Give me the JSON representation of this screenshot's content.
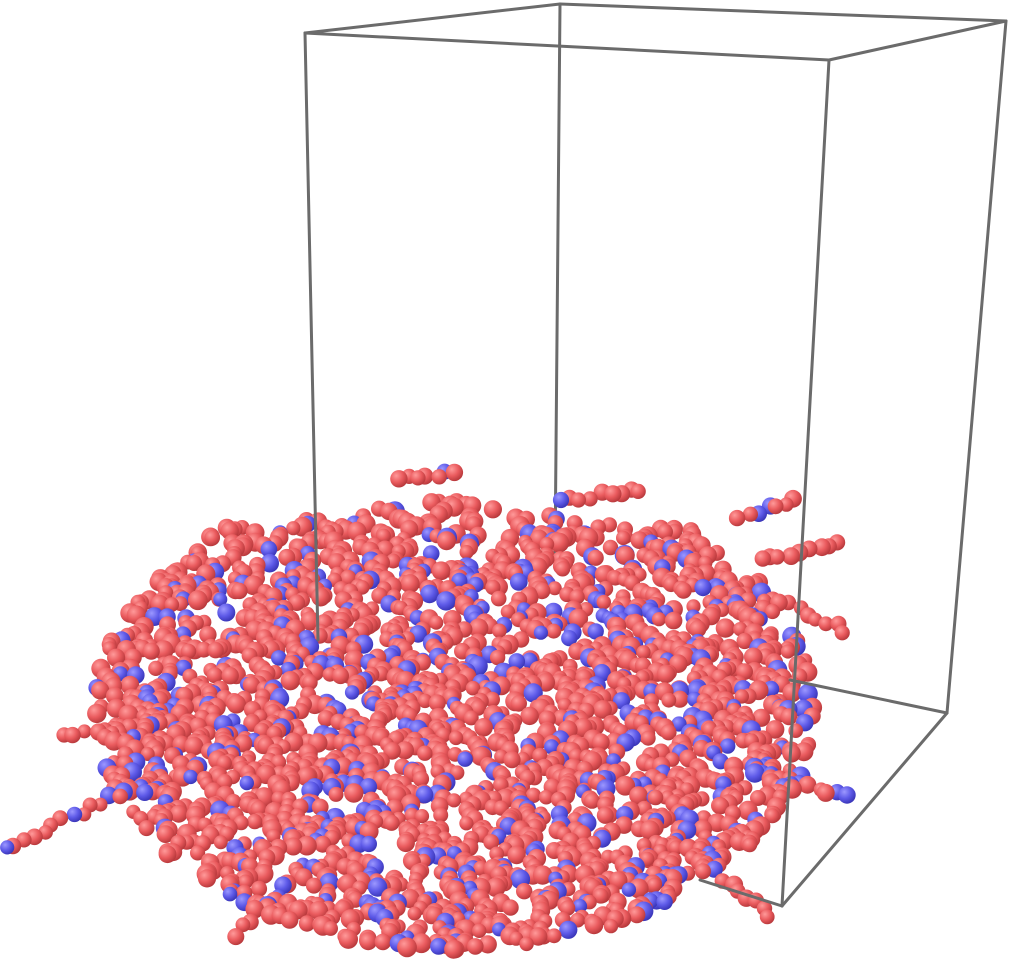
{
  "visualization": {
    "kind": "molecular-dynamics-render",
    "background": "#ffffff",
    "simulation_box": {
      "edge_color": "#6b6b6b"
    },
    "bead_types": [
      {
        "type": "A",
        "color": "#ea5b5e",
        "highlight": "#ff9a9a",
        "shade": "#b8393c"
      },
      {
        "type": "B",
        "color": "#5e5ae8",
        "highlight": "#9c98ff",
        "shade": "#3a36b8"
      }
    ],
    "mix_fraction_type_b": 0.17
  }
}
